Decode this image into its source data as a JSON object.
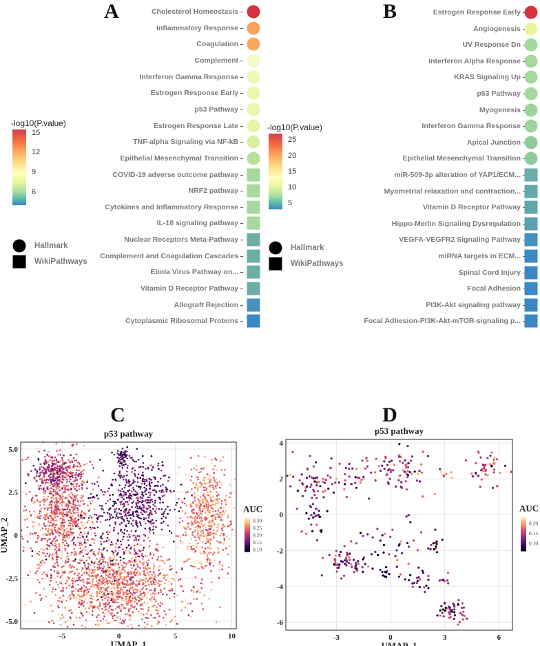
{
  "panel_labels": {
    "a": "A",
    "b": "B",
    "c": "C",
    "d": "D"
  },
  "chart_data": [
    {
      "type": "dot",
      "panel": "A",
      "legend_title": "-log10(P.value)",
      "colorbar_ticks": [
        15,
        12,
        9,
        6
      ],
      "colorbar_range": [
        4,
        15.5
      ],
      "shape_legend": [
        "Hallmark",
        "WikiPathways"
      ],
      "terms": [
        {
          "label": "Cholesterol Homeostasis",
          "source": "Hallmark",
          "value": 15,
          "color": "#d6323f"
        },
        {
          "label": "Inflammatory Response",
          "source": "Hallmark",
          "value": 13.3,
          "color": "#f9a35c"
        },
        {
          "label": "Coagulation",
          "source": "Hallmark",
          "value": 13.2,
          "color": "#fba85e"
        },
        {
          "label": "Complement",
          "source": "Hallmark",
          "value": 10,
          "color": "#f6fac4"
        },
        {
          "label": "Interferon Gamma Response",
          "source": "Hallmark",
          "value": 9.6,
          "color": "#eff7b5"
        },
        {
          "label": "Estrogen Response Early",
          "source": "Hallmark",
          "value": 9.5,
          "color": "#edf6b0"
        },
        {
          "label": "p53 Pathway",
          "source": "Hallmark",
          "value": 9.5,
          "color": "#edf6b0"
        },
        {
          "label": "Estrogen Response Late",
          "source": "Hallmark",
          "value": 9.3,
          "color": "#e8f4aa"
        },
        {
          "label": "TNF-alpha Signaling via NF-kB",
          "source": "Hallmark",
          "value": 8.8,
          "color": "#d9eea3"
        },
        {
          "label": "Epithelial Mesenchymal Transition",
          "source": "Hallmark",
          "value": 8,
          "color": "#b8e09b"
        },
        {
          "label": "COVID-19 adverse outcome pathway",
          "source": "WikiPathways",
          "value": 7.5,
          "color": "#a6d99b"
        },
        {
          "label": "NRF2 pathway",
          "source": "WikiPathways",
          "value": 7.5,
          "color": "#a6d99b"
        },
        {
          "label": "Cytokines and Inflammatory Response",
          "source": "WikiPathways",
          "value": 7.5,
          "color": "#a6d99b"
        },
        {
          "label": "IL-18 signaling pathway",
          "source": "WikiPathways",
          "value": 7.5,
          "color": "#a6d99b"
        },
        {
          "label": "Nuclear Receptors Meta-Pathway",
          "source": "WikiPathways",
          "value": 6,
          "color": "#6caea7"
        },
        {
          "label": "Complement and Coagulation Cascades",
          "source": "WikiPathways",
          "value": 6,
          "color": "#6caea7"
        },
        {
          "label": "Ebola Virus Pathway on...",
          "source": "WikiPathways",
          "value": 6,
          "color": "#6caea7"
        },
        {
          "label": "Vitamin D Receptor Pathway",
          "source": "WikiPathways",
          "value": 6,
          "color": "#6caea7"
        },
        {
          "label": "Allograft Rejection",
          "source": "WikiPathways",
          "value": 4.8,
          "color": "#4890c0"
        },
        {
          "label": "Cytoplasmic Ribosomal Proteins",
          "source": "WikiPathways",
          "value": 4.5,
          "color": "#3a88c4"
        }
      ]
    },
    {
      "type": "dot",
      "panel": "B",
      "legend_title": "-log10(P.value)",
      "colorbar_ticks": [
        25,
        20,
        15,
        10,
        5
      ],
      "colorbar_range": [
        3,
        27
      ],
      "shape_legend": [
        "Hallmark",
        "WikiPathways"
      ],
      "terms": [
        {
          "label": "Estrogen Response Early",
          "source": "Hallmark",
          "value": 26,
          "color": "#d6323f"
        },
        {
          "label": "Angiogenesis",
          "source": "Hallmark",
          "value": 13,
          "color": "#e7f59f"
        },
        {
          "label": "UV Response Dn",
          "source": "Hallmark",
          "value": 10,
          "color": "#a4d89c"
        },
        {
          "label": "Interferon Alpha Response",
          "source": "Hallmark",
          "value": 10,
          "color": "#a4d89c"
        },
        {
          "label": "KRAS Signaling Up",
          "source": "Hallmark",
          "value": 10,
          "color": "#a4d89c"
        },
        {
          "label": "p53 Pathway",
          "source": "Hallmark",
          "value": 10,
          "color": "#a4d89c"
        },
        {
          "label": "Myogenesis",
          "source": "Hallmark",
          "value": 9.5,
          "color": "#9dd49c"
        },
        {
          "label": "Interferon Gamma Response",
          "source": "Hallmark",
          "value": 9.5,
          "color": "#9dd49c"
        },
        {
          "label": "Apical Junction",
          "source": "Hallmark",
          "value": 9,
          "color": "#8fcb9c"
        },
        {
          "label": "Epithelial Mesenchymal Transition",
          "source": "Hallmark",
          "value": 9,
          "color": "#8fcb9c"
        },
        {
          "label": "miR-509-3p alteration of YAP1/ECM...",
          "source": "WikiPathways",
          "value": 7,
          "color": "#6badaa"
        },
        {
          "label": "Myometrial relaxation and contraction...",
          "source": "WikiPathways",
          "value": 6.5,
          "color": "#63a8ab"
        },
        {
          "label": "Vitamin D Receptor Pathway",
          "source": "WikiPathways",
          "value": 6.5,
          "color": "#60a6ad"
        },
        {
          "label": "Hippo-Merlin Signaling Dysregulation",
          "source": "WikiPathways",
          "value": 6,
          "color": "#5aa0b0"
        },
        {
          "label": "VEGFA-VEGFR2 Signaling Pathway",
          "source": "WikiPathways",
          "value": 5,
          "color": "#4591c0"
        },
        {
          "label": "miRNA targets in ECM...",
          "source": "WikiPathways",
          "value": 4.5,
          "color": "#3b89c4"
        },
        {
          "label": "Spinal Cord Injury",
          "source": "WikiPathways",
          "value": 4.5,
          "color": "#3b89c4"
        },
        {
          "label": "Focal Adhesion",
          "source": "WikiPathways",
          "value": 4.5,
          "color": "#3b89c4"
        },
        {
          "label": "PI3K-Akt signaling pathway",
          "source": "WikiPathways",
          "value": 4.5,
          "color": "#3b89c4"
        },
        {
          "label": "Focal Adhesion-PI3K-Akt-mTOR-signaling p...",
          "source": "WikiPathways",
          "value": 4.5,
          "color": "#3b89c4"
        }
      ]
    },
    {
      "type": "scatter",
      "panel": "C",
      "title": "p53 pathway",
      "xlabel": "UMAP_1",
      "ylabel": "UMAP_2",
      "xlim": [
        -8.7,
        10.4
      ],
      "ylim": [
        -5.45,
        5.4
      ],
      "xticks": [
        -5,
        0,
        5,
        10
      ],
      "xtick_labels": [
        "-5",
        "0",
        "5",
        "10"
      ],
      "yticks": [
        5,
        2.5,
        0,
        -2.5,
        -5
      ],
      "ytick_labels": [
        "5.0",
        "2.5",
        "0",
        "-2.5",
        "-5.0"
      ],
      "legend_title": "AUC",
      "colorbar_ticks": [
        "0.30",
        "0.25",
        "0.20",
        "0.15",
        "0.10"
      ],
      "colorbar_range": [
        0.08,
        0.32
      ],
      "clusters": [
        {
          "cx": -5.2,
          "cy": 1.3,
          "sx": 1.3,
          "sy": 1.7,
          "n": 900,
          "auc": 0.24
        },
        {
          "cx": -5.6,
          "cy": 3.6,
          "sx": 1.0,
          "sy": 0.5,
          "n": 250,
          "auc": 0.19
        },
        {
          "cx": -0.3,
          "cy": -3.0,
          "sx": 2.8,
          "sy": 1.2,
          "n": 1300,
          "auc": 0.25
        },
        {
          "cx": 7.8,
          "cy": 1.0,
          "sx": 1.0,
          "sy": 1.6,
          "n": 600,
          "auc": 0.26
        },
        {
          "cx": 2.0,
          "cy": 2.2,
          "sx": 1.4,
          "sy": 1.0,
          "n": 400,
          "auc": 0.15
        },
        {
          "cx": 0.3,
          "cy": 4.5,
          "sx": 0.3,
          "sy": 0.25,
          "n": 60,
          "auc": 0.14
        },
        {
          "cx": -0.8,
          "cy": 0.5,
          "sx": 2.2,
          "sy": 1.5,
          "n": 250,
          "auc": 0.15
        }
      ]
    },
    {
      "type": "scatter",
      "panel": "D",
      "title": "p53 pathway",
      "xlabel": "UMAP_1",
      "ylabel": "UMAP_2",
      "xlim": [
        -5.8,
        6.75
      ],
      "ylim": [
        -6.45,
        4.2
      ],
      "xticks": [
        -3,
        0,
        3,
        6
      ],
      "xtick_labels": [
        "-3",
        "0",
        "3",
        "6"
      ],
      "yticks": [
        4,
        2,
        0,
        -2,
        -4,
        -6
      ],
      "ytick_labels": [
        "4",
        "2",
        "0",
        "-2",
        "-4",
        "-6"
      ],
      "legend_title": "AUC",
      "colorbar_ticks": [
        "0.20",
        "0.15",
        "0.10"
      ],
      "colorbar_range": [
        0.06,
        0.23
      ],
      "clusters": [
        {
          "cx": -4.0,
          "cy": 2.0,
          "sx": 0.9,
          "sy": 0.5,
          "n": 70,
          "auc": 0.13
        },
        {
          "cx": -4.2,
          "cy": -0.1,
          "sx": 0.4,
          "sy": 0.6,
          "n": 30,
          "auc": 0.11
        },
        {
          "cx": -2.6,
          "cy": -2.6,
          "sx": 0.5,
          "sy": 0.4,
          "n": 55,
          "auc": 0.12
        },
        {
          "cx": -1.5,
          "cy": 2.4,
          "sx": 0.6,
          "sy": 0.6,
          "n": 20,
          "auc": 0.14
        },
        {
          "cx": 0.6,
          "cy": 2.5,
          "sx": 0.8,
          "sy": 0.6,
          "n": 70,
          "auc": 0.14
        },
        {
          "cx": 5.4,
          "cy": 2.5,
          "sx": 0.5,
          "sy": 0.5,
          "n": 50,
          "auc": 0.15
        },
        {
          "cx": 3.0,
          "cy": 2.3,
          "sx": 0.3,
          "sy": 0.15,
          "n": 10,
          "auc": 0.19
        },
        {
          "cx": 3.3,
          "cy": -5.4,
          "sx": 0.4,
          "sy": 0.35,
          "n": 45,
          "auc": 0.12
        },
        {
          "cx": 1.7,
          "cy": -3.7,
          "sx": 0.3,
          "sy": 0.3,
          "n": 20,
          "auc": 0.1
        },
        {
          "cx": 0.3,
          "cy": -1.8,
          "sx": 1.0,
          "sy": 0.8,
          "n": 40,
          "auc": 0.11
        },
        {
          "cx": 2.4,
          "cy": -1.8,
          "sx": 0.15,
          "sy": 0.15,
          "n": 10,
          "auc": 0.09
        },
        {
          "cx": 3.0,
          "cy": -3.6,
          "sx": 0.2,
          "sy": 0.2,
          "n": 8,
          "auc": 0.14
        },
        {
          "cx": -0.5,
          "cy": -3.1,
          "sx": 1.0,
          "sy": 0.2,
          "n": 20,
          "auc": 0.09
        }
      ]
    }
  ]
}
